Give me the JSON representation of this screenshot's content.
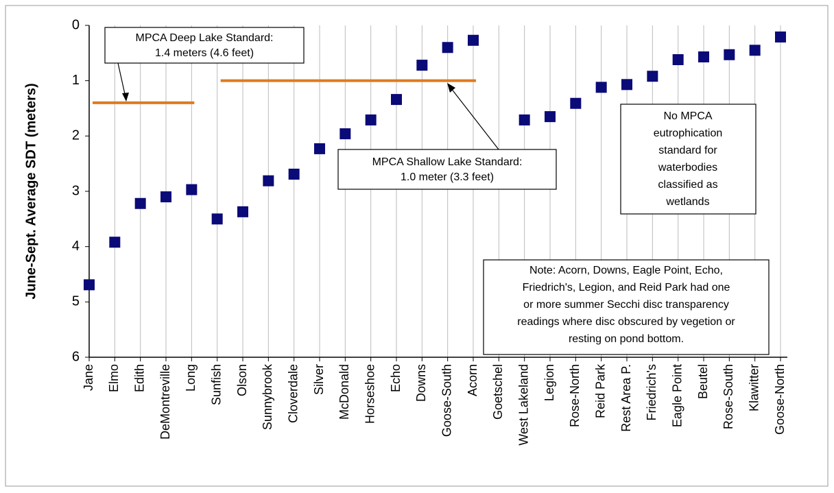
{
  "chart_data": {
    "type": "scatter",
    "y_axis_label": "June-Sept. Average SDT (meters)",
    "categories": [
      "Jane",
      "Elmo",
      "Edith",
      "DeMontreville",
      "Long",
      "Sunfish",
      "Olson",
      "Sunnybrook",
      "Cloverdale",
      "Silver",
      "McDonald",
      "Horseshoe",
      "Echo",
      "Downs",
      "Goose-South",
      "Acorn",
      "Goetschel",
      "West Lakeland",
      "Legion",
      "Rose-North",
      "Reid Park",
      "Rest Area P.",
      "Friedrich's",
      "Eagle Point",
      "Beutel",
      "Rose-South",
      "Klawitter",
      "Goose-North"
    ],
    "values": [
      4.69,
      3.92,
      3.22,
      3.1,
      2.97,
      3.5,
      3.37,
      2.81,
      2.69,
      2.23,
      1.96,
      1.71,
      1.34,
      0.72,
      0.4,
      0.27,
      null,
      1.71,
      1.65,
      1.41,
      1.12,
      1.07,
      0.92,
      0.62,
      0.57,
      0.53,
      0.45,
      0.21
    ],
    "color": "#0a0a78",
    "ylim": [
      0,
      6
    ],
    "yticks": [
      0,
      1,
      2,
      3,
      4,
      5,
      6
    ],
    "y_inverted": true,
    "grid": "vertical",
    "reference_lines": [
      {
        "value": 1.4,
        "start_category": "Jane",
        "end_category": "Long",
        "color": "#e07a1f",
        "label": [
          "MPCA  Deep Lake Standard:",
          "1.4 meters (4.6 feet)"
        ]
      },
      {
        "value": 1.0,
        "start_category": "Sunfish",
        "end_category": "Acorn",
        "color": "#e07a1f",
        "label": [
          "MPCA  Shallow Lake Standard:",
          "1.0 meter (3.3 feet)"
        ]
      }
    ],
    "annotations": [
      [
        "No MPCA",
        "eutrophication",
        "standard for",
        "waterbodies",
        "classified as",
        "wetlands"
      ],
      [
        "Note: Acorn, Downs, Eagle Point, Echo,",
        "Friedrich's, Legion, and Reid Park had one",
        "or more summer Secchi disc transparency",
        "readings where disc obscured by vegetion or",
        "resting on pond bottom."
      ]
    ]
  }
}
